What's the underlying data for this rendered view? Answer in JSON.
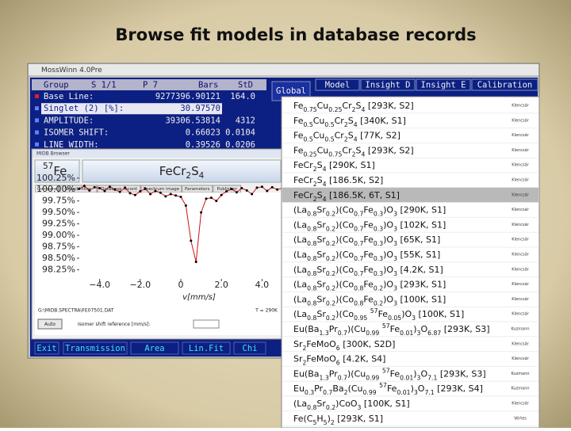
{
  "title": "Browse fit models in database records",
  "window": {
    "title": "MossWinn 4.0Pre",
    "table": {
      "headers": [
        "Group",
        "S 1/1",
        "P 7",
        "Bars",
        "StD"
      ],
      "rows": [
        {
          "name": "Base Line:",
          "value": "9277396.90121",
          "std": "164.0"
        },
        {
          "name": "Singlet (2) [%]:",
          "value": "30.97570"
        },
        {
          "name": "AMPLITUDE:",
          "value": "39306.53814",
          "std": "4312"
        },
        {
          "name": "ISOMER SHIFT:",
          "value": "0.66023",
          "std": "0.0104"
        },
        {
          "name": "LINE WIDTH:",
          "value": "0.39526",
          "std": "0.0206"
        }
      ]
    },
    "tabs": [
      "Global",
      "Model",
      "Insight D",
      "Insight E",
      "Calibration"
    ],
    "buttons": [
      "Exit",
      "Transmission",
      "Area",
      "Lin.Fit",
      "Chi"
    ]
  },
  "browser": {
    "title": "MIDB Browser",
    "isotope": "57Fe",
    "compound": "FeCr2S4",
    "tabs": [
      "Compare",
      "Search filter",
      "Database record",
      "Spectrum image",
      "Parameters",
      "Publisher"
    ],
    "file": "G:\\MIDB.SPECTRA\\FE07501.DAT",
    "temperature": "T = 290K",
    "auto": "Auto",
    "reference": "Isomer shift reference [mm/s]:",
    "spectrum": {
      "x": [
        -5,
        -4.75,
        -4.5,
        -4.25,
        -4,
        -3.75,
        -3.5,
        -3.25,
        -3,
        -2.75,
        -2.5,
        -2.25,
        -2,
        -1.75,
        -1.5,
        -1.25,
        -1,
        -0.75,
        -0.5,
        -0.25,
        0,
        0.25,
        0.5,
        0.75,
        1,
        1.25,
        1.5,
        1.75,
        2,
        2.25,
        2.5,
        2.75,
        3,
        3.25,
        3.5,
        3.75,
        4,
        4.25,
        4.5,
        4.75,
        5
      ],
      "y": [
        100.02,
        100.08,
        99.98,
        100.05,
        100.03,
        99.97,
        100.06,
        100.0,
        99.95,
        100.04,
        99.92,
        99.88,
        99.96,
        100.02,
        99.9,
        99.97,
        99.93,
        99.85,
        99.9,
        99.87,
        99.84,
        99.65,
        98.88,
        98.42,
        99.5,
        99.8,
        99.82,
        99.75,
        99.88,
        99.96,
        100.01,
        99.94,
        100.03,
        99.98,
        99.9,
        100.04,
        100.06,
        99.97,
        100.05,
        100.0,
        100.03
      ],
      "xlim": [
        -5,
        5
      ],
      "ylim": [
        98.1,
        100.35
      ],
      "xticks": [
        {
          "value": -4,
          "label": "−4.0"
        },
        {
          "value": -2,
          "label": "−2.0"
        },
        0,
        {
          "value": 2,
          "label": "2.0"
        },
        {
          "value": 4,
          "label": "4.0"
        }
      ],
      "yticks": [
        {
          "value": 100.25,
          "label": "100.25%"
        },
        {
          "value": 100,
          "label": "100.00%"
        },
        {
          "value": 99.75,
          "label": "99.75%"
        },
        {
          "value": 99.5,
          "label": "99.50%"
        },
        {
          "value": 99.25,
          "label": "99.25%"
        },
        {
          "value": 99,
          "label": "99.00%"
        },
        {
          "value": 98.75,
          "label": "98.75%"
        },
        {
          "value": 98.5,
          "label": "98.50%"
        },
        {
          "value": 98.25,
          "label": "98.25%"
        }
      ],
      "xlabel": "v[mm/s]",
      "point_color": "#000000",
      "fit_color": "#d01010"
    }
  },
  "list": {
    "items": [
      "Fe0.75Cu0.25Cr2S4 [293K, S2]",
      "Fe0.5Cu0.5Cr2S4 [340K, S1]",
      "Fe0.5Cu0.5Cr2S4 [77K, S2]",
      "Fe0.25Cu0.75Cr2S4 [293K, S2]",
      "FeCr2S4 [290K, S1]",
      "FeCr2S4 [186.5K, S2]",
      "FeCr2S4 [186.5K, 6T, S1]",
      "(La0.8Sr0.2)(Co0.7Fe0.3)O3 [290K, S1]",
      "(La0.8Sr0.2)(Co0.7Fe0.3)O3 [102K, S1]",
      "(La0.8Sr0.2)(Co0.7Fe0.3)O3 [65K, S1]",
      "(La0.8Sr0.2)(Co0.7Fe0.3)O3 [55K, S1]",
      "(La0.8Sr0.2)(Co0.7Fe0.3)O3 [4.2K, S1]",
      "(La0.8Sr0.2)(Co0.8Fe0.2)O3 [293K, S1]",
      "(La0.8Sr0.2)(Co0.8Fe0.2)O3 [100K, S1]",
      "(La0.8Sr0.2)(Co0.95 57Fe0.05)O3 [100K, S1]",
      "Eu(Ba1.3Pr0.7)(Cu0.99 57Fe0.01)3O6.87 [293K, S3]",
      "Sr2FeMoO6 [300K, S2D]",
      "Sr2FeMoO6 [4.2K, S4]",
      "Eu(Ba1.3Pr0.7)(Cu0.99 57Fe0.01)3O7.1 [293K, S3]",
      "Eu0.3Pr0.7Ba2(Cu0.99 57Fe0.01)3O7.1 [293K, S4]",
      "(La0.8Sr0.2)CoO3 [100K, S1]",
      "Fe(C5H5)2 [293K, S1]"
    ],
    "authors": [
      "Klencsár",
      "Klencsár",
      "Klencsár",
      "Klencsár",
      "Klencsár",
      "Klencsár",
      "Klencsár",
      "Klencsár",
      "Klencsár",
      "Klencsár",
      "Klencsár",
      "Klencsár",
      "Klencsár",
      "Klencsár",
      "Klencsár",
      "Kuzmann",
      "Klencsár",
      "Klencsár",
      "Kuzmann",
      "Kuzmann",
      "Klencsár",
      "Vértes"
    ]
  }
}
